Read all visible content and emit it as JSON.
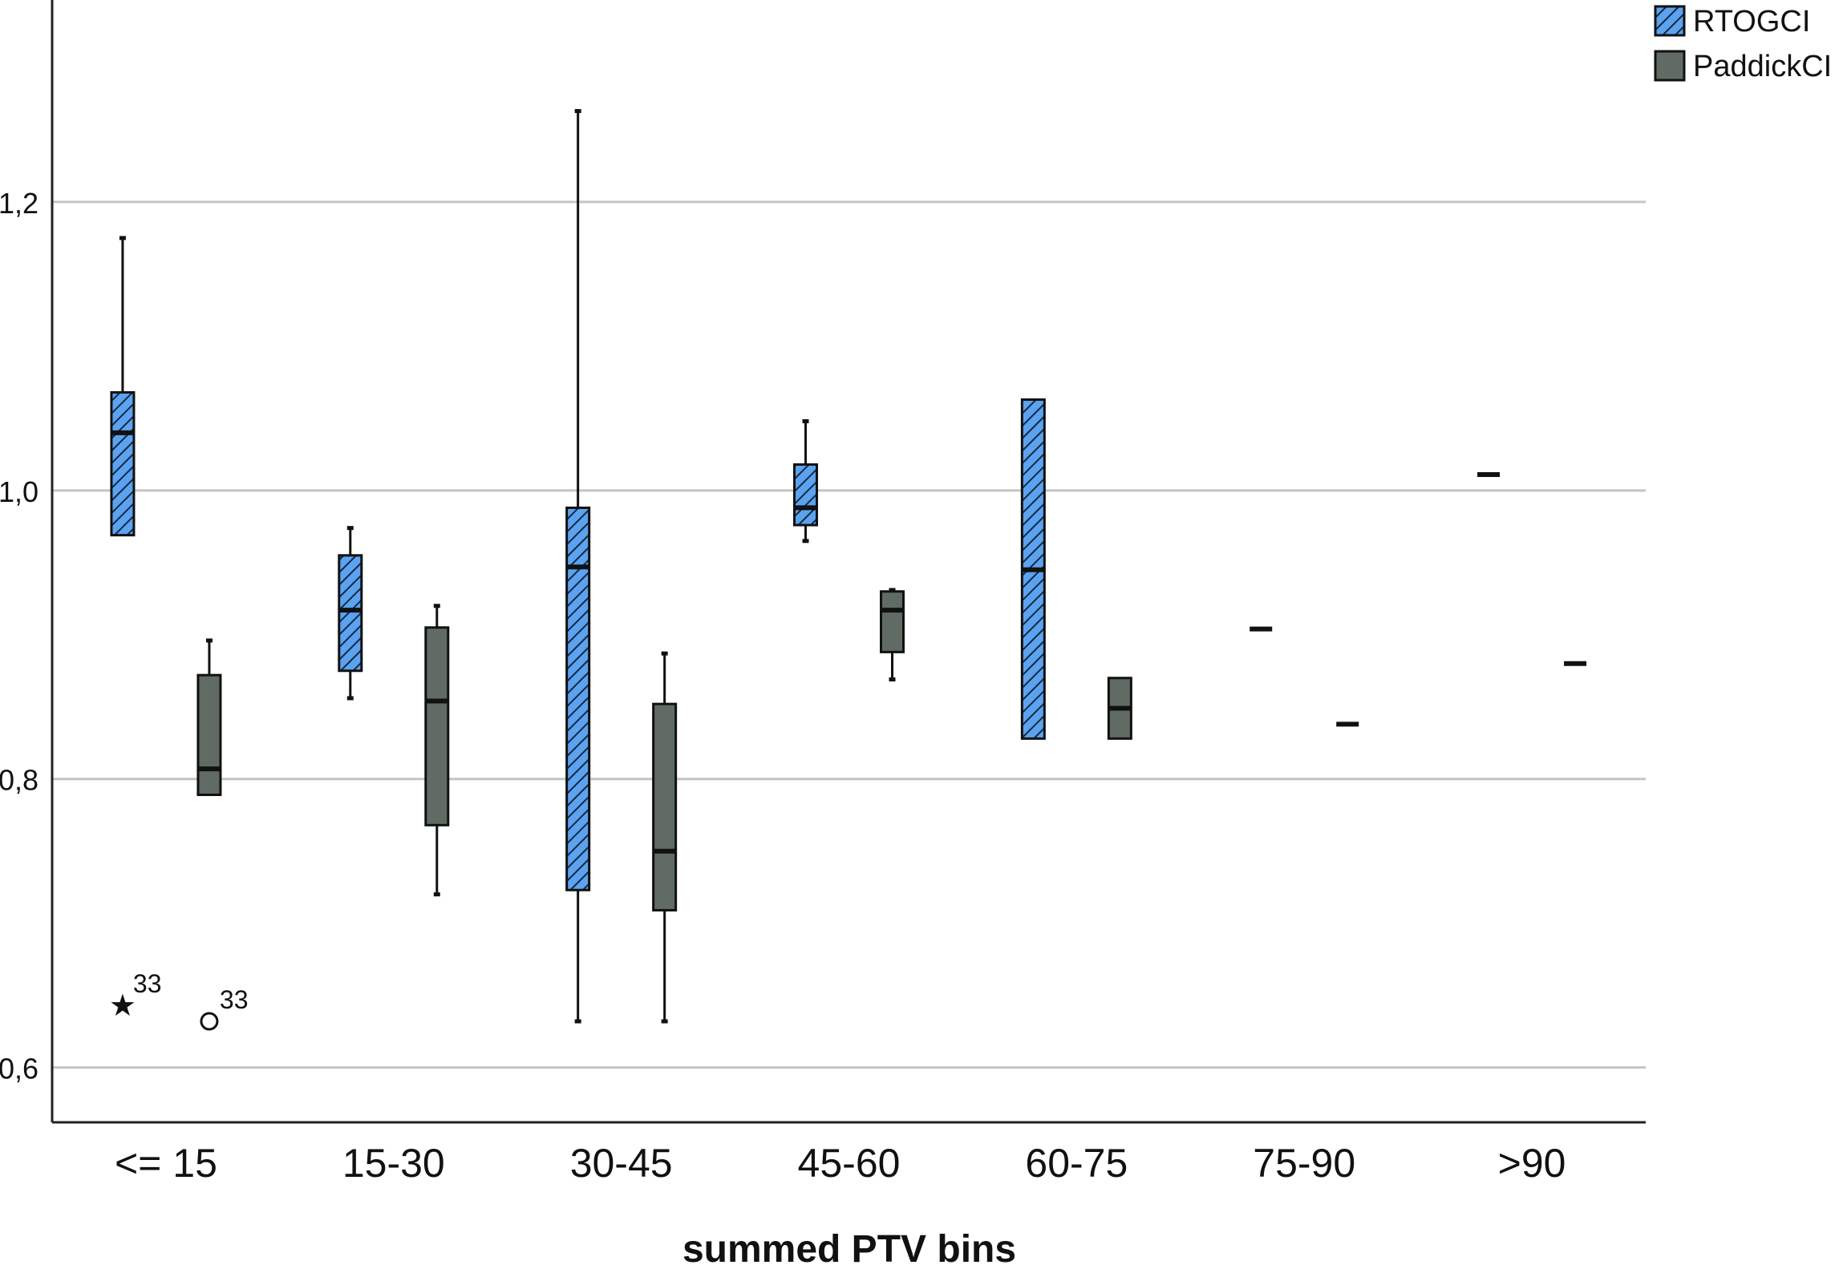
{
  "chart_data": {
    "type": "boxplot",
    "xlabel": "summed PTV bins",
    "ylabel": "",
    "ylim": [
      0.562,
      1.34
    ],
    "yticks": [
      0.6,
      0.8,
      1.0,
      1.2
    ],
    "ytick_labels": [
      "0,6",
      "0,8",
      "1,0",
      "1,2"
    ],
    "grid": true,
    "legend_position": "top-right",
    "categories": [
      "<= 15",
      "15-30",
      "30-45",
      "45-60",
      "60-75",
      "75-90",
      ">90"
    ],
    "series": [
      {
        "name": "RTOGCI",
        "color": "#5ba3f0",
        "pattern": "diagonal-hatch",
        "boxes": [
          {
            "min": 0.969,
            "q1": 0.969,
            "median": 1.04,
            "q3": 1.068,
            "max": 1.175
          },
          {
            "min": 0.856,
            "q1": 0.875,
            "median": 0.917,
            "q3": 0.955,
            "max": 0.974
          },
          {
            "min": 0.632,
            "q1": 0.723,
            "median": 0.947,
            "q3": 0.988,
            "max": 1.263
          },
          {
            "min": 0.965,
            "q1": 0.976,
            "median": 0.988,
            "q3": 1.018,
            "max": 1.048
          },
          {
            "min": 0.828,
            "q1": 0.828,
            "median": 0.945,
            "q3": 1.063,
            "max": 1.063
          },
          {
            "min": 0.904,
            "q1": 0.904,
            "median": 0.904,
            "q3": 0.904,
            "max": 0.904
          },
          {
            "min": 1.011,
            "q1": 1.011,
            "median": 1.011,
            "q3": 1.011,
            "max": 1.011
          }
        ],
        "outliers": [
          {
            "category": "<= 15",
            "value": 0.643,
            "marker": "star",
            "label": "33"
          }
        ]
      },
      {
        "name": "PaddickCI",
        "color": "#5f6b63",
        "pattern": "solid",
        "boxes": [
          {
            "min": 0.789,
            "q1": 0.789,
            "median": 0.807,
            "q3": 0.872,
            "max": 0.896
          },
          {
            "min": 0.72,
            "q1": 0.768,
            "median": 0.854,
            "q3": 0.905,
            "max": 0.92
          },
          {
            "min": 0.632,
            "q1": 0.709,
            "median": 0.75,
            "q3": 0.852,
            "max": 0.887
          },
          {
            "min": 0.869,
            "q1": 0.888,
            "median": 0.917,
            "q3": 0.93,
            "max": 0.931
          },
          {
            "min": 0.828,
            "q1": 0.828,
            "median": 0.849,
            "q3": 0.87,
            "max": 0.87
          },
          {
            "min": 0.838,
            "q1": 0.838,
            "median": 0.838,
            "q3": 0.838,
            "max": 0.838
          },
          {
            "min": 0.88,
            "q1": 0.88,
            "median": 0.88,
            "q3": 0.88,
            "max": 0.88
          }
        ],
        "outliers": [
          {
            "category": "<= 15",
            "value": 0.632,
            "marker": "circle",
            "label": "33"
          }
        ]
      }
    ]
  }
}
